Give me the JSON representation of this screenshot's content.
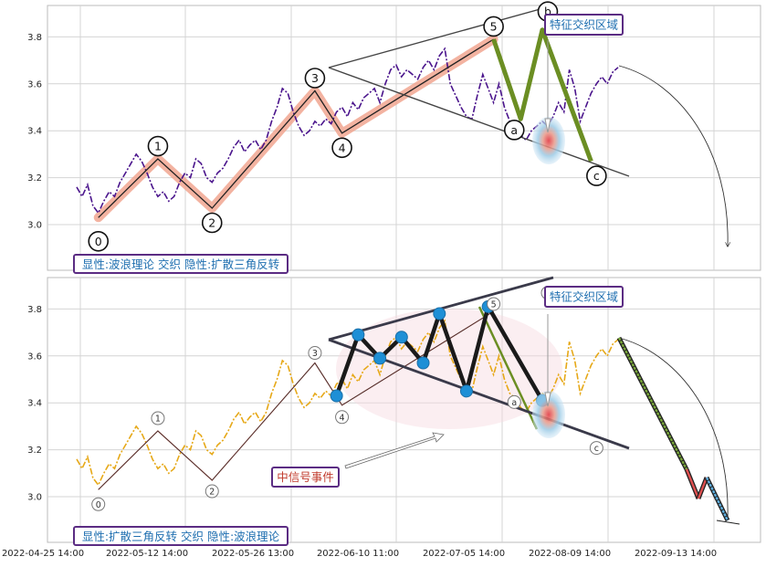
{
  "chart_data": [
    {
      "type": "line",
      "panel": "top",
      "ylim": [
        2.8,
        3.92
      ],
      "yticks": [
        "3.0",
        "3.2",
        "3.4",
        "3.6",
        "3.8"
      ],
      "price_series": [
        [
          0.0,
          3.16
        ],
        [
          1.0,
          3.12
        ],
        [
          2.0,
          3.17
        ],
        [
          3.0,
          3.08
        ],
        [
          4.0,
          3.05
        ],
        [
          5.0,
          3.1
        ],
        [
          6.0,
          3.14
        ],
        [
          7.0,
          3.12
        ],
        [
          8.0,
          3.18
        ],
        [
          9.0,
          3.22
        ],
        [
          10.0,
          3.26
        ],
        [
          11.0,
          3.3
        ],
        [
          12.0,
          3.27
        ],
        [
          13.0,
          3.22
        ],
        [
          14.0,
          3.16
        ],
        [
          15.0,
          3.12
        ],
        [
          16.0,
          3.14
        ],
        [
          17.0,
          3.1
        ],
        [
          18.0,
          3.12
        ],
        [
          19.0,
          3.18
        ],
        [
          20.0,
          3.22
        ],
        [
          21.0,
          3.2
        ],
        [
          22.0,
          3.28
        ],
        [
          23.0,
          3.26
        ],
        [
          24.0,
          3.2
        ],
        [
          25.0,
          3.18
        ],
        [
          26.0,
          3.22
        ],
        [
          27.0,
          3.24
        ],
        [
          28.0,
          3.28
        ],
        [
          29.0,
          3.33
        ],
        [
          30.0,
          3.36
        ],
        [
          31.0,
          3.31
        ],
        [
          32.0,
          3.34
        ],
        [
          33.0,
          3.36
        ],
        [
          34.0,
          3.32
        ],
        [
          35.0,
          3.36
        ],
        [
          36.0,
          3.44
        ],
        [
          37.0,
          3.5
        ],
        [
          38.0,
          3.58
        ],
        [
          39.0,
          3.56
        ],
        [
          40.0,
          3.48
        ],
        [
          41.0,
          3.42
        ],
        [
          42.0,
          3.38
        ],
        [
          43.0,
          3.4
        ],
        [
          44.0,
          3.44
        ],
        [
          45.0,
          3.42
        ],
        [
          46.0,
          3.45
        ],
        [
          47.0,
          3.43
        ],
        [
          48.0,
          3.48
        ],
        [
          49.0,
          3.5
        ],
        [
          50.0,
          3.46
        ],
        [
          51.0,
          3.52
        ],
        [
          52.0,
          3.49
        ],
        [
          53.0,
          3.54
        ],
        [
          54.0,
          3.56
        ],
        [
          55.0,
          3.58
        ],
        [
          56.0,
          3.52
        ],
        [
          57.0,
          3.6
        ],
        [
          58.0,
          3.66
        ],
        [
          59.0,
          3.68
        ],
        [
          60.0,
          3.63
        ],
        [
          61.0,
          3.66
        ],
        [
          62.0,
          3.64
        ],
        [
          63.0,
          3.62
        ],
        [
          64.0,
          3.67
        ],
        [
          65.0,
          3.7
        ],
        [
          66.0,
          3.66
        ],
        [
          67.0,
          3.72
        ],
        [
          68.0,
          3.75
        ],
        [
          69.0,
          3.6
        ],
        [
          70.0,
          3.55
        ],
        [
          71.0,
          3.5
        ],
        [
          72.0,
          3.46
        ],
        [
          73.0,
          3.45
        ],
        [
          74.0,
          3.55
        ],
        [
          75.0,
          3.64
        ],
        [
          76.0,
          3.58
        ],
        [
          77.0,
          3.52
        ],
        [
          78.0,
          3.6
        ],
        [
          79.0,
          3.5
        ],
        [
          80.0,
          3.44
        ],
        [
          81.0,
          3.42
        ],
        [
          82.0,
          3.38
        ],
        [
          83.0,
          3.36
        ],
        [
          84.0,
          3.4
        ],
        [
          85.0,
          3.42
        ],
        [
          86.0,
          3.44
        ],
        [
          87.0,
          3.42
        ],
        [
          88.0,
          3.46
        ],
        [
          89.0,
          3.52
        ],
        [
          90.0,
          3.48
        ],
        [
          91.0,
          3.66
        ],
        [
          92.0,
          3.58
        ],
        [
          93.0,
          3.44
        ],
        [
          94.0,
          3.5
        ],
        [
          95.0,
          3.56
        ],
        [
          96.0,
          3.6
        ],
        [
          97.0,
          3.63
        ],
        [
          98.0,
          3.6
        ],
        [
          99.0,
          3.65
        ],
        [
          100.0,
          3.67
        ]
      ],
      "wave_points": [
        {
          "label": "0",
          "x": 4,
          "y": 3.03
        },
        {
          "label": "1",
          "x": 15,
          "y": 3.28
        },
        {
          "label": "2",
          "x": 25,
          "y": 3.07
        },
        {
          "label": "3",
          "x": 44,
          "y": 3.57
        },
        {
          "label": "4",
          "x": 49,
          "y": 3.39
        },
        {
          "label": "5",
          "x": 77,
          "y": 3.79
        },
        {
          "label": "a",
          "x": 82,
          "y": 3.45
        },
        {
          "label": "b",
          "x": 86,
          "y": 3.83
        },
        {
          "label": "c",
          "x": 95,
          "y": 3.27
        }
      ],
      "annotation_title": "特征交织区域",
      "annotation_caption": "显性:波浪理论 交织 隐性:扩散三角反转"
    },
    {
      "type": "line",
      "panel": "bottom",
      "ylim": [
        2.8,
        3.92
      ],
      "yticks": [
        "3.0",
        "3.2",
        "3.4",
        "3.6",
        "3.8"
      ],
      "xticks": [
        "2022-04-25 14:00",
        "2022-05-12 14:00",
        "2022-05-26 13:00",
        "2022-06-10 11:00",
        "2022-07-05 14:00",
        "2022-08-09 14:00",
        "2022-09-13 14:00"
      ],
      "triangle_points": [
        {
          "x": 68,
          "y": 3.43
        },
        {
          "x": 72,
          "y": 3.69
        },
        {
          "x": 76,
          "y": 3.59
        },
        {
          "x": 80,
          "y": 3.68
        },
        {
          "x": 84,
          "y": 3.57
        },
        {
          "x": 87,
          "y": 3.78
        },
        {
          "x": 92,
          "y": 3.45
        },
        {
          "x": 96,
          "y": 3.81
        },
        {
          "x": 106,
          "y": 3.41
        }
      ],
      "wave_labels": [
        "0",
        "1",
        "2",
        "3",
        "4",
        "5",
        "a",
        "c"
      ],
      "annotation_title": "特征交织区域",
      "signal_label": "中信号事件",
      "annotation_caption": "显性:扩散三角反转 交织 隐性:波浪理论"
    }
  ]
}
